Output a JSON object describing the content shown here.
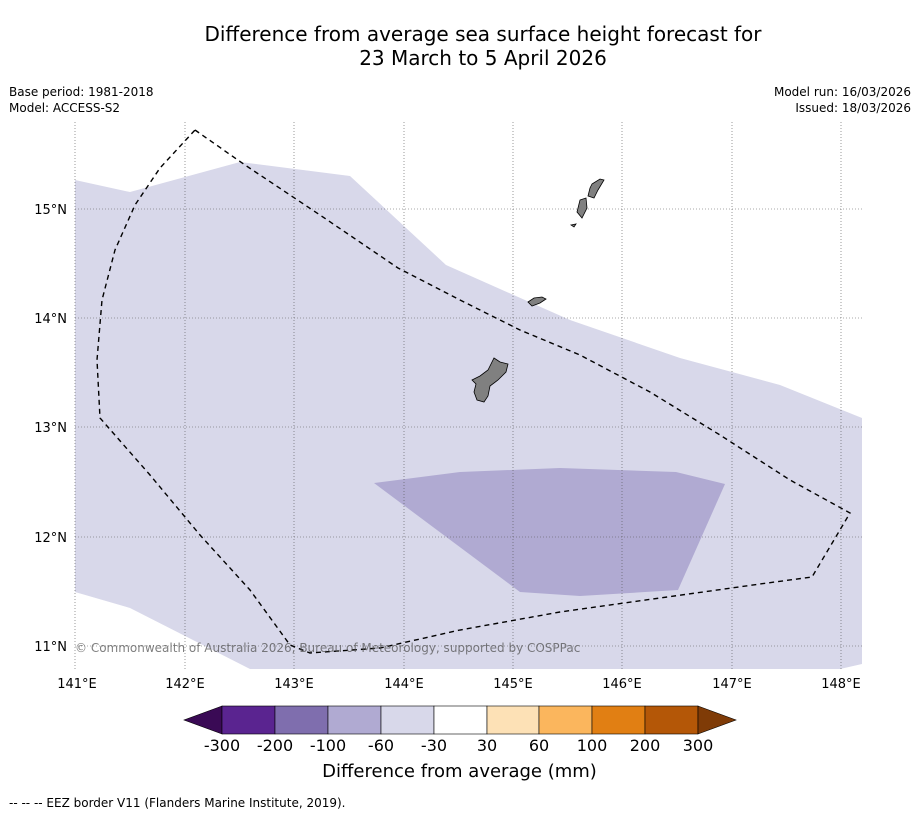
{
  "title": {
    "line1": "Difference from average sea surface height forecast for",
    "line2": "23 March to 5 April 2026"
  },
  "meta": {
    "base_period": "Base period: 1981-2018",
    "model": "Model: ACCESS-S2",
    "model_run": "Model run: 16/03/2026",
    "issued": "Issued: 18/03/2026"
  },
  "map": {
    "lon_ticks": [
      "141°E",
      "142°E",
      "143°E",
      "144°E",
      "145°E",
      "146°E",
      "147°E",
      "148°E"
    ],
    "lat_ticks": [
      "15°N",
      "14°N",
      "13°N",
      "12°N",
      "11°N"
    ],
    "lon_range": [
      141,
      148.2
    ],
    "lat_range": [
      10.8,
      15.8
    ],
    "regions": [
      {
        "name": "-60 to -30 mm",
        "color": "#d8d8ea"
      },
      {
        "name": "-100 to -60 mm",
        "color": "#b0aad2"
      }
    ],
    "land_color": "#808080",
    "credit": "© Commonwealth of Australia 2026, Bureau of Meteorology, supported by COSPPac"
  },
  "colorbar": {
    "labels": [
      "-300",
      "-200",
      "-100",
      "-60",
      "-30",
      "30",
      "60",
      "100",
      "200",
      "300"
    ],
    "colors": [
      "#5a2490",
      "#7f6eae",
      "#b0aad2",
      "#d8d8ea",
      "#ffffff",
      "#fde1b6",
      "#fbb65d",
      "#e17f13",
      "#b45707"
    ],
    "under_color": "#3a0a55",
    "over_color": "#7f3b07",
    "title": "Difference from average (mm)"
  },
  "footnote": "--  --  -- EEZ border V11 (Flanders Marine Institute, 2019)."
}
